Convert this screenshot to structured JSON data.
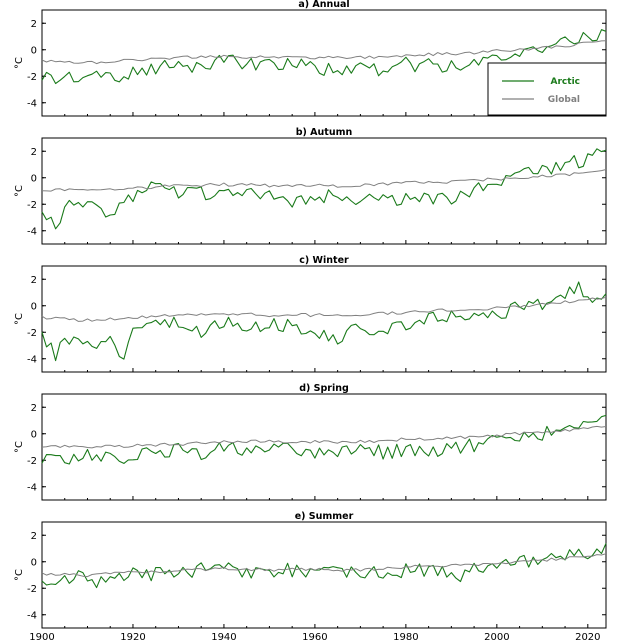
{
  "chart_data": {
    "type": "line",
    "shared_x_axis": {
      "range": [
        1900,
        2024
      ],
      "ticks": [
        1900,
        1920,
        1940,
        1960,
        1980,
        2000,
        2020
      ],
      "tick_labels": [
        "1900",
        "1920",
        "1940",
        "1960",
        "1980",
        "2000",
        "2020"
      ]
    },
    "ylabel": "°C",
    "legend": {
      "placement": "right",
      "entries": [
        {
          "name": "Arctic",
          "color": "#1a7a1a"
        },
        {
          "name": "Global",
          "color": "#808080"
        }
      ]
    },
    "series_colors": {
      "Arctic": "#1a7a1a",
      "Global": "#808080"
    },
    "panels": [
      {
        "title": "a) Annual",
        "ylim": [
          -5,
          3
        ],
        "yticks": [
          2,
          0,
          -2,
          -4
        ],
        "ytick_labels": [
          "2",
          "0",
          "-2",
          "-4"
        ],
        "series": [
          {
            "name": "Arctic",
            "x": [
              1900,
              1905,
              1910,
              1915,
              1918,
              1920,
              1925,
              1930,
              1935,
              1940,
              1945,
              1950,
              1955,
              1960,
              1965,
              1970,
              1975,
              1980,
              1985,
              1990,
              1995,
              2000,
              2005,
              2010,
              2015,
              2018,
              2020,
              2024
            ],
            "values": [
              -2.0,
              -2.1,
              -1.8,
              -2.0,
              -2.5,
              -1.7,
              -1.5,
              -1.0,
              -1.3,
              -0.8,
              -1.1,
              -1.2,
              -1.0,
              -1.4,
              -1.5,
              -1.3,
              -1.5,
              -1.1,
              -1.2,
              -1.3,
              -0.9,
              -0.6,
              -0.1,
              0.2,
              0.5,
              0.8,
              0.9,
              1.0
            ]
          },
          {
            "name": "Global",
            "x": [
              1900,
              1910,
              1920,
              1930,
              1940,
              1950,
              1960,
              1970,
              1980,
              1990,
              2000,
              2010,
              2020,
              2024
            ],
            "values": [
              -0.8,
              -1.0,
              -0.8,
              -0.6,
              -0.5,
              -0.6,
              -0.6,
              -0.6,
              -0.4,
              -0.3,
              -0.1,
              0.1,
              0.5,
              0.7
            ]
          }
        ]
      },
      {
        "title": "b) Autumn",
        "ylim": [
          -5,
          3
        ],
        "yticks": [
          2,
          0,
          -2,
          -4
        ],
        "ytick_labels": [
          "2",
          "0",
          "-2",
          "-4"
        ],
        "series": [
          {
            "name": "Arctic",
            "x": [
              1900,
              1903,
              1906,
              1910,
              1915,
              1920,
              1925,
              1930,
              1935,
              1940,
              1945,
              1950,
              1955,
              1960,
              1965,
              1970,
              1975,
              1980,
              1985,
              1990,
              1995,
              2000,
              2005,
              2010,
              2015,
              2020,
              2024
            ],
            "values": [
              -2.5,
              -3.5,
              -1.8,
              -2.0,
              -2.6,
              -1.3,
              -0.7,
              -1.0,
              -1.2,
              -0.8,
              -1.2,
              -1.3,
              -1.7,
              -1.5,
              -1.3,
              -1.8,
              -1.6,
              -1.5,
              -1.6,
              -1.8,
              -1.0,
              -0.2,
              0.3,
              0.5,
              0.9,
              1.5,
              1.8
            ]
          },
          {
            "name": "Global",
            "x": [
              1900,
              1910,
              1920,
              1930,
              1940,
              1950,
              1960,
              1970,
              1980,
              1990,
              2000,
              2010,
              2020,
              2024
            ],
            "values": [
              -0.9,
              -1.0,
              -0.8,
              -0.6,
              -0.5,
              -0.6,
              -0.6,
              -0.6,
              -0.4,
              -0.3,
              -0.1,
              0.1,
              0.4,
              0.6
            ]
          }
        ]
      },
      {
        "title": "c) Winter",
        "ylim": [
          -5,
          3
        ],
        "yticks": [
          2,
          0,
          -2,
          -4
        ],
        "ytick_labels": [
          "2",
          "0",
          "-2",
          "-4"
        ],
        "series": [
          {
            "name": "Arctic",
            "x": [
              1900,
              1903,
              1906,
              1910,
              1915,
              1918,
              1920,
              1925,
              1930,
              1935,
              1940,
              1945,
              1950,
              1955,
              1960,
              1965,
              1970,
              1975,
              1980,
              1985,
              1990,
              1995,
              2000,
              2005,
              2010,
              2015,
              2018,
              2020,
              2024
            ],
            "values": [
              -2.0,
              -3.7,
              -2.4,
              -3.0,
              -2.7,
              -3.8,
              -2.2,
              -1.6,
              -1.3,
              -1.9,
              -1.1,
              -1.6,
              -1.5,
              -1.4,
              -1.9,
              -2.4,
              -1.6,
              -1.8,
              -1.4,
              -1.0,
              -0.9,
              -0.9,
              -0.5,
              -0.2,
              0.2,
              0.8,
              1.4,
              0.6,
              0.9
            ]
          },
          {
            "name": "Global",
            "x": [
              1900,
              1910,
              1920,
              1930,
              1940,
              1950,
              1960,
              1970,
              1980,
              1990,
              2000,
              2010,
              2020,
              2024
            ],
            "values": [
              -0.9,
              -1.1,
              -0.9,
              -0.7,
              -0.6,
              -0.7,
              -0.7,
              -0.7,
              -0.5,
              -0.3,
              -0.2,
              0.1,
              0.5,
              0.6
            ]
          }
        ]
      },
      {
        "title": "d) Spring",
        "ylim": [
          -5,
          3
        ],
        "yticks": [
          2,
          0,
          -2,
          -4
        ],
        "ytick_labels": [
          "2",
          "0",
          "-2",
          "-4"
        ],
        "series": [
          {
            "name": "Arctic",
            "x": [
              1900,
              1905,
              1910,
              1915,
              1920,
              1925,
              1930,
              1935,
              1940,
              1945,
              1950,
              1955,
              1960,
              1965,
              1970,
              1975,
              1980,
              1985,
              1990,
              1995,
              2000,
              2005,
              2010,
              2015,
              2020,
              2024
            ],
            "values": [
              -1.8,
              -2.0,
              -1.6,
              -2.0,
              -1.5,
              -1.4,
              -1.1,
              -1.4,
              -0.9,
              -1.2,
              -1.3,
              -1.0,
              -1.4,
              -1.5,
              -1.3,
              -1.4,
              -1.2,
              -1.3,
              -1.0,
              -0.9,
              -0.6,
              -0.3,
              0.0,
              0.3,
              0.8,
              0.9
            ]
          },
          {
            "name": "Global",
            "x": [
              1900,
              1910,
              1920,
              1930,
              1940,
              1950,
              1960,
              1970,
              1980,
              1990,
              2000,
              2010,
              2020,
              2024
            ],
            "values": [
              -0.9,
              -1.0,
              -0.9,
              -0.8,
              -0.6,
              -0.6,
              -0.6,
              -0.6,
              -0.4,
              -0.3,
              -0.1,
              0.1,
              0.4,
              0.5
            ]
          }
        ]
      },
      {
        "title": "e) Summer",
        "ylim": [
          -5,
          3
        ],
        "yticks": [
          2,
          0,
          -2,
          -4
        ],
        "ytick_labels": [
          "2",
          "0",
          "-2",
          "-4"
        ],
        "series": [
          {
            "name": "Arctic",
            "x": [
              1900,
              1905,
              1910,
              1912,
              1915,
              1920,
              1925,
              1930,
              1935,
              1940,
              1945,
              1950,
              1955,
              1960,
              1965,
              1970,
              1975,
              1980,
              1985,
              1990,
              1992,
              1995,
              2000,
              2005,
              2010,
              2015,
              2020,
              2024
            ],
            "values": [
              -1.4,
              -1.2,
              -1.1,
              -1.8,
              -1.0,
              -1.0,
              -0.9,
              -0.8,
              -0.6,
              -0.5,
              -0.7,
              -0.7,
              -0.6,
              -0.8,
              -0.9,
              -0.7,
              -0.9,
              -0.6,
              -0.8,
              -0.6,
              -1.3,
              -0.5,
              -0.3,
              -0.1,
              0.1,
              0.4,
              0.7,
              0.9
            ]
          },
          {
            "name": "Global",
            "x": [
              1900,
              1910,
              1920,
              1930,
              1940,
              1950,
              1960,
              1970,
              1980,
              1990,
              2000,
              2010,
              2020,
              2024
            ],
            "values": [
              -0.9,
              -1.0,
              -0.8,
              -0.7,
              -0.5,
              -0.6,
              -0.6,
              -0.6,
              -0.4,
              -0.3,
              -0.1,
              0.1,
              0.4,
              0.6
            ]
          }
        ]
      }
    ]
  }
}
